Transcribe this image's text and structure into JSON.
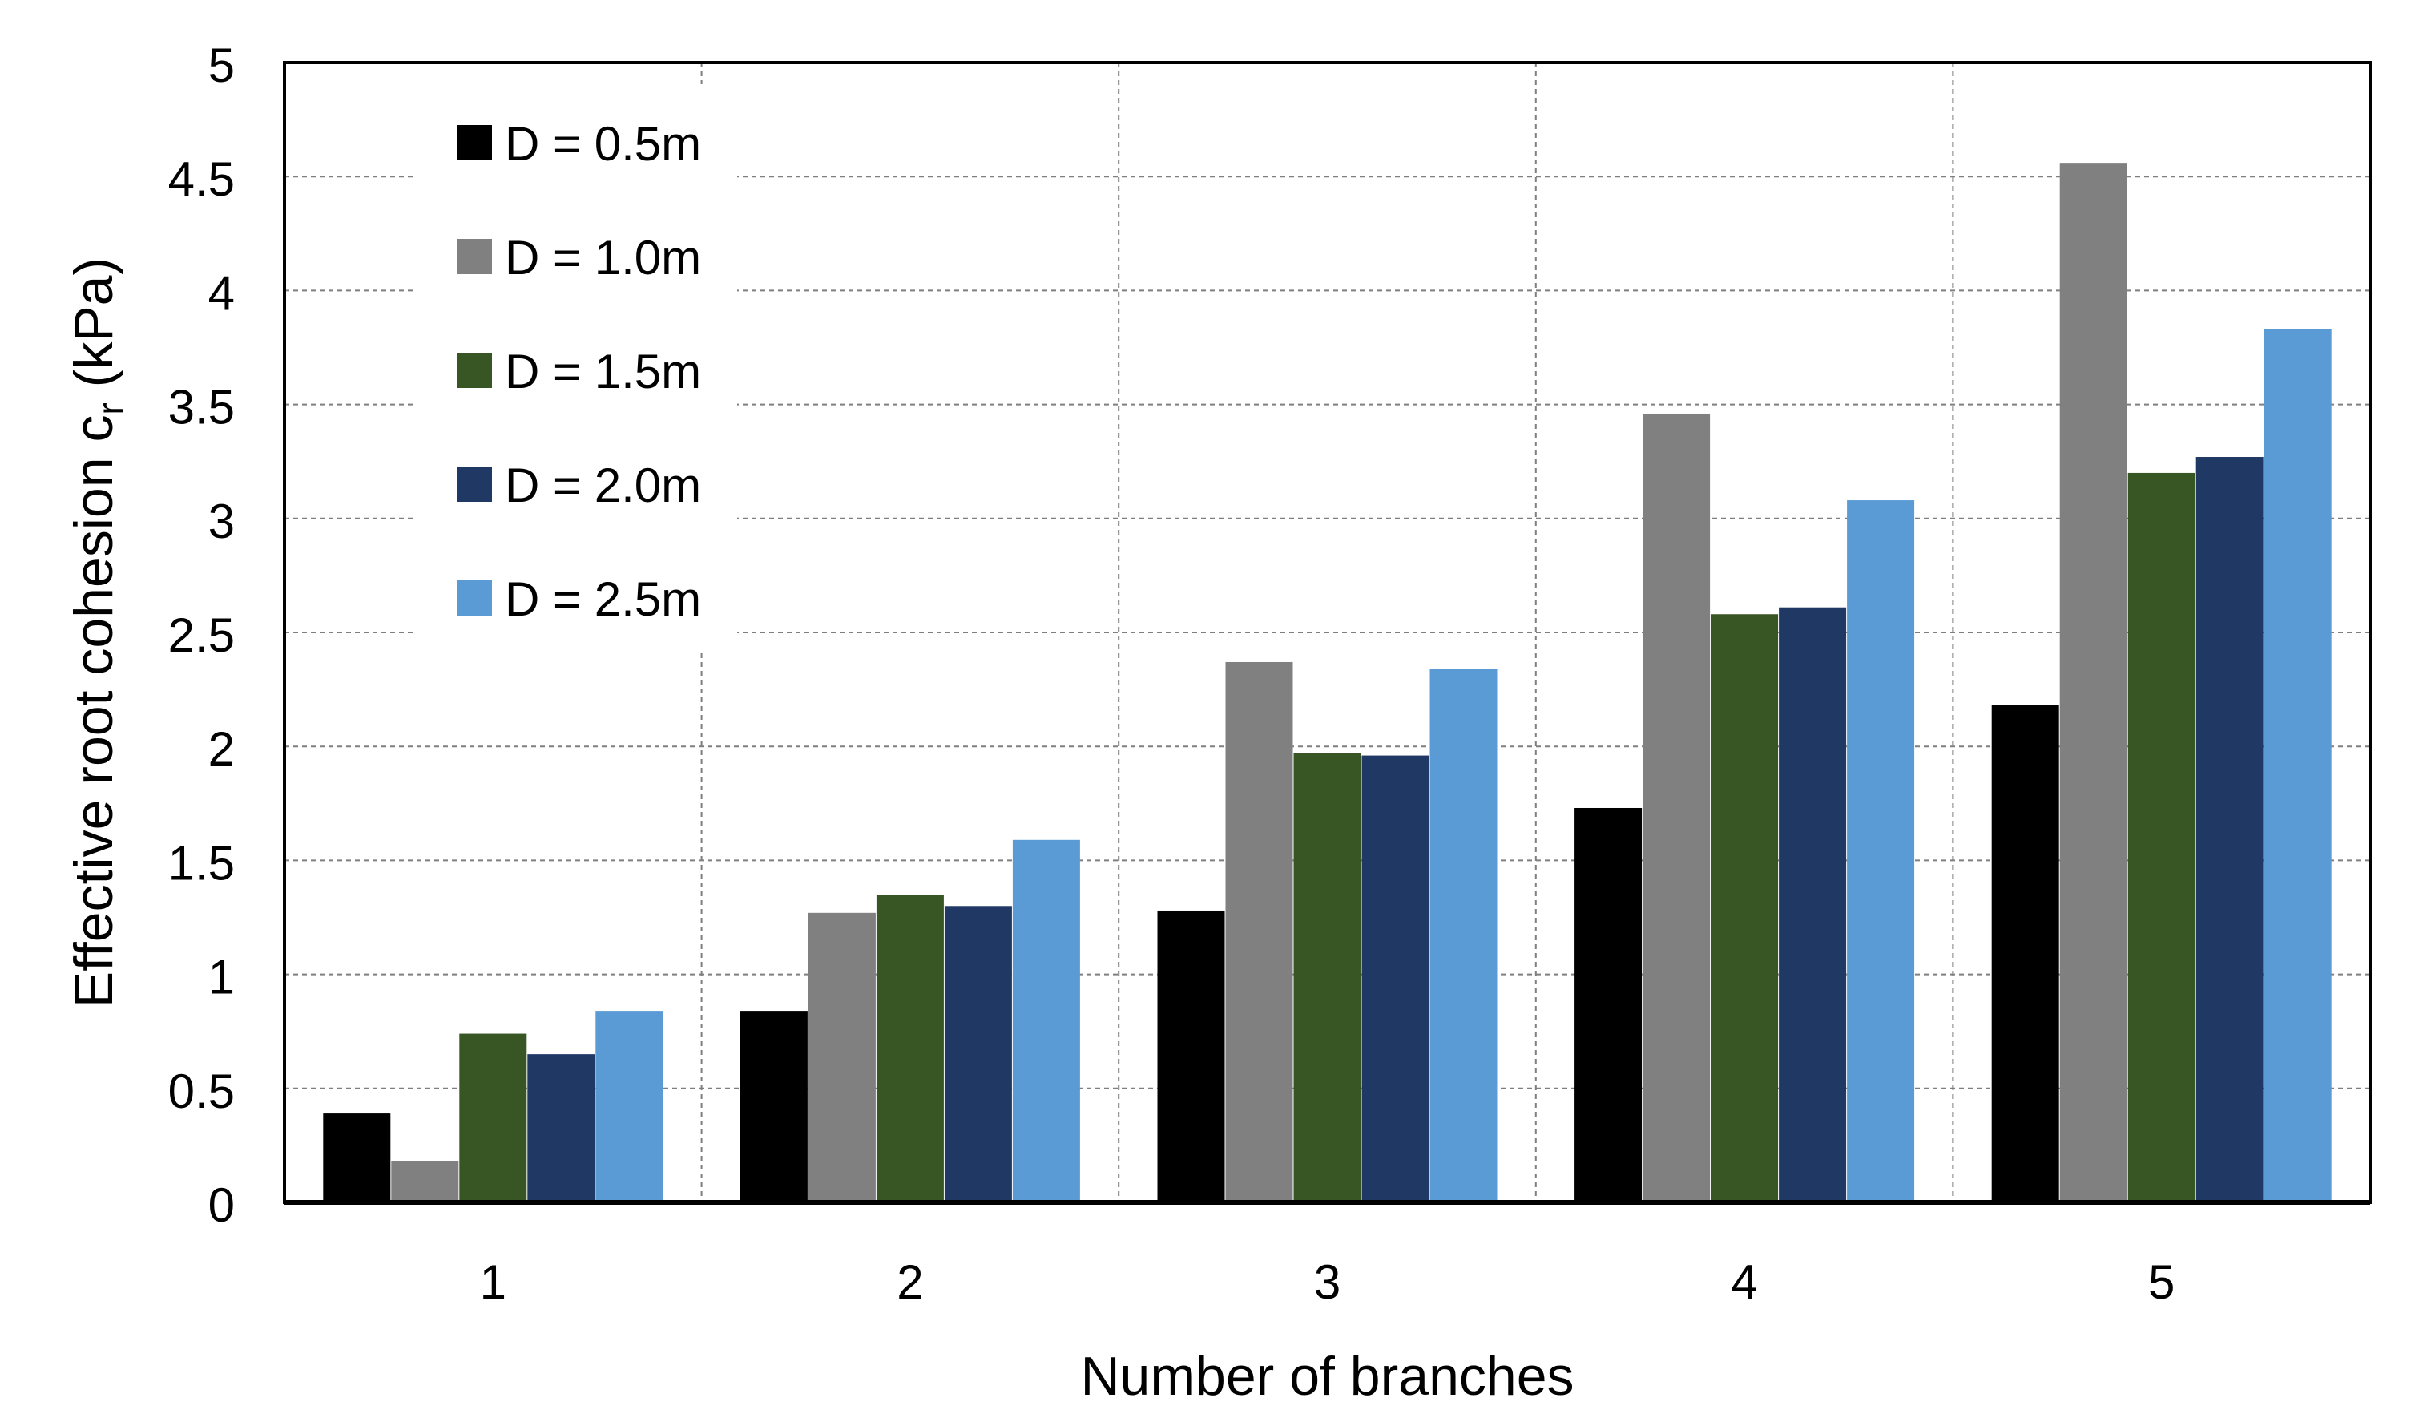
{
  "chart_data": {
    "type": "bar",
    "title": "",
    "xlabel": "Number of branches",
    "ylabel": {
      "main": "Effective  root cohesion c",
      "subscript": "r",
      "suffix": " (kPa)"
    },
    "ylim": [
      0,
      5
    ],
    "yticks": [
      "0",
      "0.5",
      "1",
      "1.5",
      "2",
      "2.5",
      "3",
      "3.5",
      "4",
      "4.5",
      "5"
    ],
    "categories": [
      "1",
      "2",
      "3",
      "4",
      "5"
    ],
    "grid": true,
    "legend_position": "top-left",
    "series": [
      {
        "name": "D = 0.5m",
        "color": "#000000",
        "values": [
          0.39,
          0.84,
          1.28,
          1.73,
          2.18
        ]
      },
      {
        "name": "D = 1.0m",
        "color": "#808080",
        "values": [
          0.18,
          1.27,
          2.37,
          3.46,
          4.56
        ]
      },
      {
        "name": "D = 1.5m",
        "color": "#375623",
        "values": [
          0.74,
          1.35,
          1.97,
          2.58,
          3.2
        ]
      },
      {
        "name": "D = 2.0m",
        "color": "#1F3864",
        "values": [
          0.65,
          1.3,
          1.96,
          2.61,
          3.27
        ]
      },
      {
        "name": "D = 2.5m",
        "color": "#5B9BD5",
        "values": [
          0.84,
          1.59,
          2.34,
          3.08,
          3.83
        ]
      }
    ]
  }
}
